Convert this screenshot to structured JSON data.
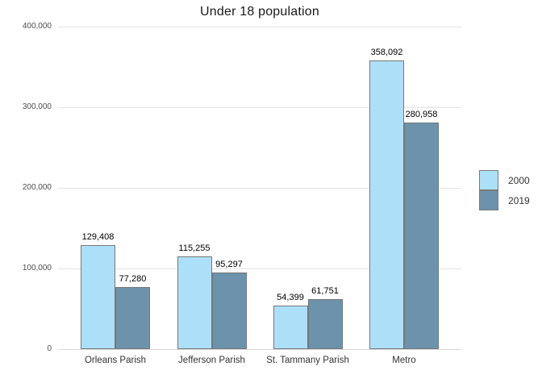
{
  "chart_data": {
    "type": "bar",
    "title": "Under 18 population",
    "xlabel": "",
    "ylabel": "",
    "categories": [
      "Orleans Parish",
      "Jefferson Parish",
      "St. Tammany Parish",
      "Metro"
    ],
    "series": [
      {
        "name": "2000",
        "color": "#ACE0F9",
        "values": [
          129408,
          115255,
          54399,
          358092
        ]
      },
      {
        "name": "2019",
        "color": "#6D93AC",
        "values": [
          77280,
          95297,
          61751,
          280958
        ]
      }
    ],
    "value_labels": [
      "129,408",
      "77,280",
      "115,255",
      "95,297",
      "54,399",
      "61,751",
      "358,092",
      "280,958"
    ],
    "ylim": [
      0,
      400000
    ],
    "ytick_step": 100000,
    "ytick_labels": [
      "0",
      "100,000",
      "200,000",
      "300,000",
      "400,000"
    ],
    "grid": true,
    "legend_position": "right",
    "bar_border_color": "#777777",
    "gridline_color": "#e4e4e4",
    "background_color": "#ffffff"
  }
}
